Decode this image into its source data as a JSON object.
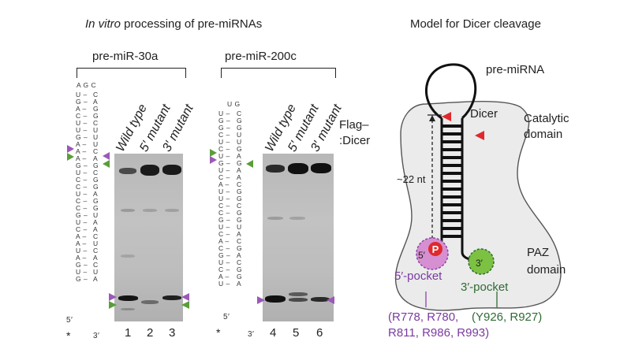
{
  "left_panel": {
    "title_italic": "In vitro",
    "title_rest": " processing of pre-miRNAs",
    "groups": [
      {
        "label": "pre-miR-30a",
        "lanes": [
          "Wild type",
          "5′ mutant",
          "3′ mutant"
        ],
        "numbers": [
          "1",
          "2",
          "3"
        ]
      },
      {
        "label": "pre-miR-200c",
        "lanes": [
          "Wild type",
          "5′ mutant",
          "3′ mutant"
        ],
        "numbers": [
          "4",
          "5",
          "6"
        ]
      }
    ],
    "enzyme_label_1": "Flag–",
    "enzyme_label_2": ":Dicer",
    "hairpin_30a": {
      "loop": "A G C",
      "stem_left": [
        "U",
        "G",
        "A",
        "C",
        "U",
        "U",
        "G",
        "A",
        "A",
        "A",
        "G",
        "U",
        "C",
        "C",
        "U",
        "C",
        "C",
        "G",
        "U",
        "C",
        "A",
        "A",
        "U",
        "A",
        "G",
        "U",
        "G"
      ],
      "stem_right": [
        "C",
        "A",
        "G",
        "G",
        "C",
        "U",
        "U",
        "U",
        "C",
        "A",
        "G",
        "C",
        "G",
        "G",
        "A",
        "G",
        "G",
        "U",
        "A",
        "A",
        "C",
        "U",
        "C",
        "A",
        "C",
        "U",
        "A"
      ],
      "five_prime": "5′",
      "three_prime": "3′",
      "asterisk": "*"
    },
    "hairpin_200c": {
      "loop": "U G",
      "stem_left": [
        "U",
        "G",
        "G",
        "C",
        "U",
        "C",
        "U",
        "G",
        "U",
        "C",
        "A",
        "U",
        "U",
        "C",
        "C",
        "G",
        "U",
        "C",
        "A",
        "C",
        "G",
        "U",
        "C",
        "A",
        "U"
      ],
      "stem_right": [
        "C",
        "G",
        "G",
        "U",
        "U",
        "G",
        "A",
        "G",
        "A",
        "A",
        "C",
        "G",
        "G",
        "C",
        "G",
        "G",
        "U",
        "A",
        "C",
        "G",
        "A",
        "C",
        "G",
        "G",
        "A"
      ],
      "five_prime": "5′",
      "three_prime": "3′",
      "asterisk": "*"
    },
    "marker_colors": {
      "purple": "#9b59b6",
      "green": "#5a9e3a"
    }
  },
  "right_panel": {
    "title": "Model for Dicer cleavage",
    "pre_mirna_label": "pre-miRNA",
    "dicer_label": "Dicer",
    "catalytic_1": "Catalytic",
    "catalytic_2": "domain",
    "length_label": "~22 nt",
    "paz_1": "PAZ",
    "paz_2": "domain",
    "phosphate": "P",
    "five_prime": "5′",
    "three_prime": "3′",
    "five_pocket": "5′-pocket",
    "three_pocket": "3′-pocket",
    "five_residues_1": "(R778, R780,",
    "five_residues_2": "R811, R986, R993)",
    "three_residues": "(Y926, R927)",
    "colors": {
      "purple": "#8e44ad",
      "green": "#4caf50",
      "red": "#e0282d",
      "body": "#eaeaea"
    }
  }
}
